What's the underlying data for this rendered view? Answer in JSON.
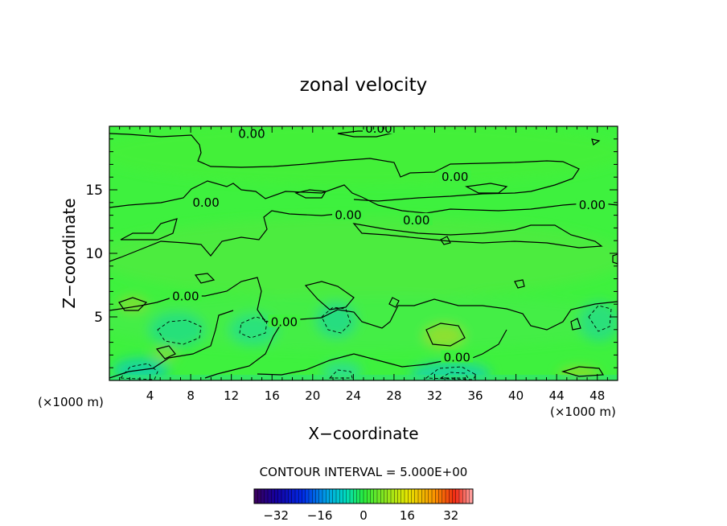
{
  "chart_data": {
    "type": "heatmap",
    "title": "zonal velocity",
    "xlabel": "X−coordinate",
    "ylabel": "Z−coordinate",
    "x_unit_left": "(×1000 m)",
    "x_unit_right": "(×1000 m)",
    "xlim": [
      0,
      50
    ],
    "ylim": [
      0,
      20
    ],
    "x_ticks": [
      4,
      8,
      12,
      16,
      20,
      24,
      28,
      32,
      36,
      40,
      44,
      48
    ],
    "y_ticks": [
      5,
      10,
      15
    ],
    "contour_interval_text": "CONTOUR INTERVAL = 5.000E+00",
    "contour_labels": [
      {
        "text": "0.00",
        "x": 14.0,
        "y": 19.4
      },
      {
        "text": "0.00",
        "x": 26.5,
        "y": 19.8
      },
      {
        "text": "0.00",
        "x": 34.0,
        "y": 16.0
      },
      {
        "text": "0.00",
        "x": 9.5,
        "y": 14.0
      },
      {
        "text": "0.00",
        "x": 23.5,
        "y": 13.0
      },
      {
        "text": "0.00",
        "x": 30.2,
        "y": 12.6
      },
      {
        "text": "0.00",
        "x": 47.5,
        "y": 13.8
      },
      {
        "text": "0.00",
        "x": 7.5,
        "y": 6.6
      },
      {
        "text": "0.00",
        "x": 17.2,
        "y": 4.6
      },
      {
        "text": "0.00",
        "x": 34.2,
        "y": 1.8
      }
    ],
    "colorbar": {
      "range": [
        -40,
        40
      ],
      "ticks": [
        -32,
        -16,
        0,
        16,
        32
      ]
    },
    "colors": {
      "background_field": "#3df23d",
      "contour_line": "#000000"
    }
  }
}
